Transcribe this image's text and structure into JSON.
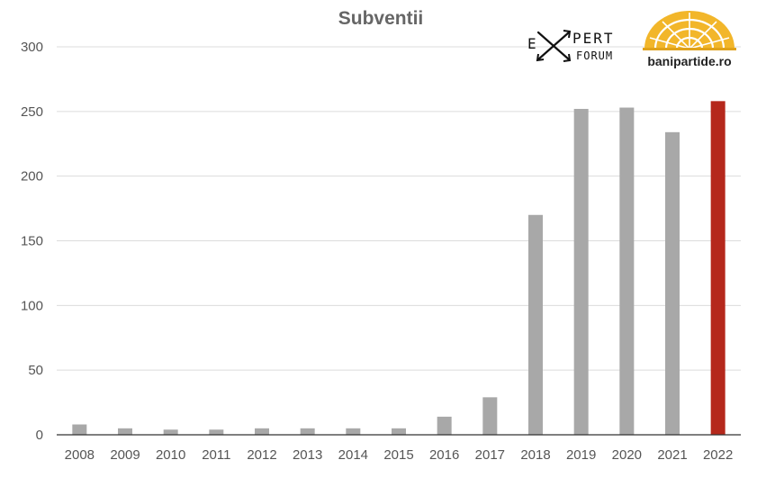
{
  "chart_data": {
    "type": "bar",
    "title": "Subventii",
    "xlabel": "",
    "ylabel": "",
    "categories": [
      "2008",
      "2009",
      "2010",
      "2011",
      "2012",
      "2013",
      "2014",
      "2015",
      "2016",
      "2017",
      "2018",
      "2019",
      "2020",
      "2021",
      "2022"
    ],
    "values": [
      8,
      5,
      4,
      4,
      5,
      5,
      5,
      5,
      14,
      29,
      170,
      252,
      253,
      234,
      258
    ],
    "ylim": [
      0,
      300
    ],
    "yticks": [
      "0",
      "50",
      "100",
      "150",
      "200",
      "250",
      "300"
    ],
    "grid": true,
    "legend": "none",
    "colors": {
      "default_bar": "#a8a8a8",
      "highlight_bar": "#b5281c",
      "highlight_category": "2022",
      "bp_logo_yellow": "#f2b62a"
    }
  },
  "logos": {
    "expert_forum": {
      "line1": "PERT",
      "line2": "FORUM",
      "letter": "E"
    },
    "banipartide": {
      "label": "banipartide.ro"
    }
  }
}
